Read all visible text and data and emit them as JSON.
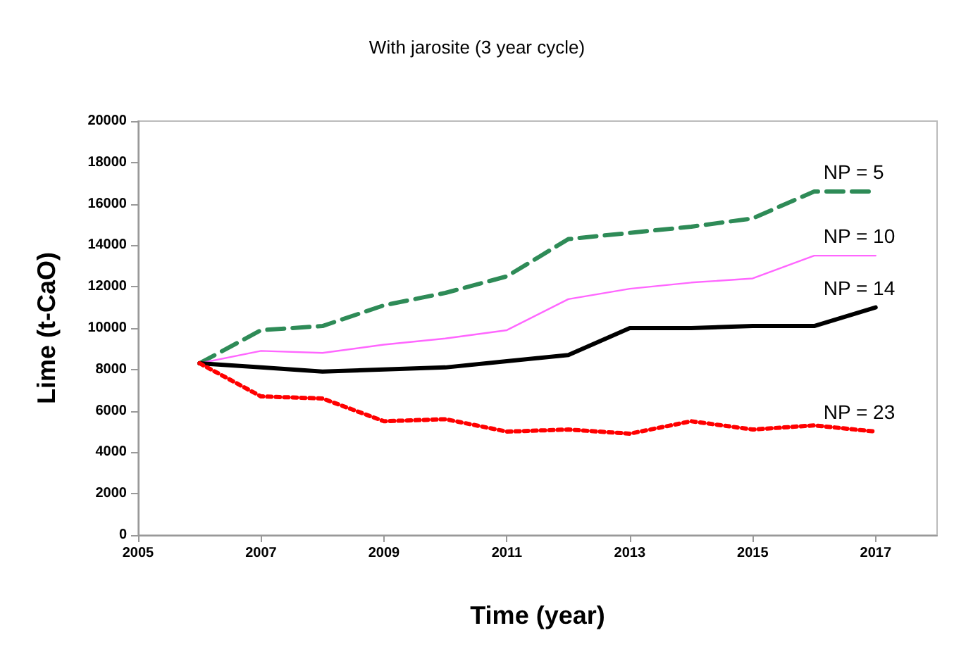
{
  "chart_data": {
    "type": "line",
    "title": "With jarosite (3 year cycle)",
    "xlabel": "Time (year)",
    "ylabel": "Lime (t-CaO)",
    "x": [
      2006,
      2007,
      2008,
      2009,
      2010,
      2011,
      2012,
      2013,
      2014,
      2015,
      2016,
      2017
    ],
    "series": [
      {
        "name": "NP = 5",
        "color": "#2e8b57",
        "line_style": "dashed",
        "values": [
          8300,
          9900,
          10100,
          11100,
          11700,
          12500,
          14300,
          14600,
          14900,
          15300,
          16600,
          16600
        ]
      },
      {
        "name": "NP = 10",
        "color": "#ff66ff",
        "line_style": "solid",
        "values": [
          8300,
          8900,
          8800,
          9200,
          9500,
          9900,
          11400,
          11900,
          12200,
          12400,
          13500,
          13500
        ]
      },
      {
        "name": "NP = 14",
        "color": "#000000",
        "line_style": "solid",
        "values": [
          8300,
          8100,
          7900,
          8000,
          8100,
          8400,
          8700,
          10000,
          10000,
          10100,
          10100,
          11000
        ]
      },
      {
        "name": "NP = 23",
        "color": "#ff0000",
        "line_style": "dotted",
        "values": [
          8300,
          6700,
          6600,
          5500,
          5600,
          5000,
          5100,
          4900,
          5500,
          5100,
          5300,
          5000
        ]
      }
    ],
    "xlim": [
      2005,
      2018
    ],
    "xticks": [
      2005,
      2007,
      2009,
      2011,
      2013,
      2015,
      2017
    ],
    "ylim": [
      0,
      20000
    ],
    "yticks": [
      0,
      2000,
      4000,
      6000,
      8000,
      10000,
      12000,
      14000,
      16000,
      18000,
      20000
    ],
    "grid": false,
    "legend": false,
    "marker": "none"
  }
}
